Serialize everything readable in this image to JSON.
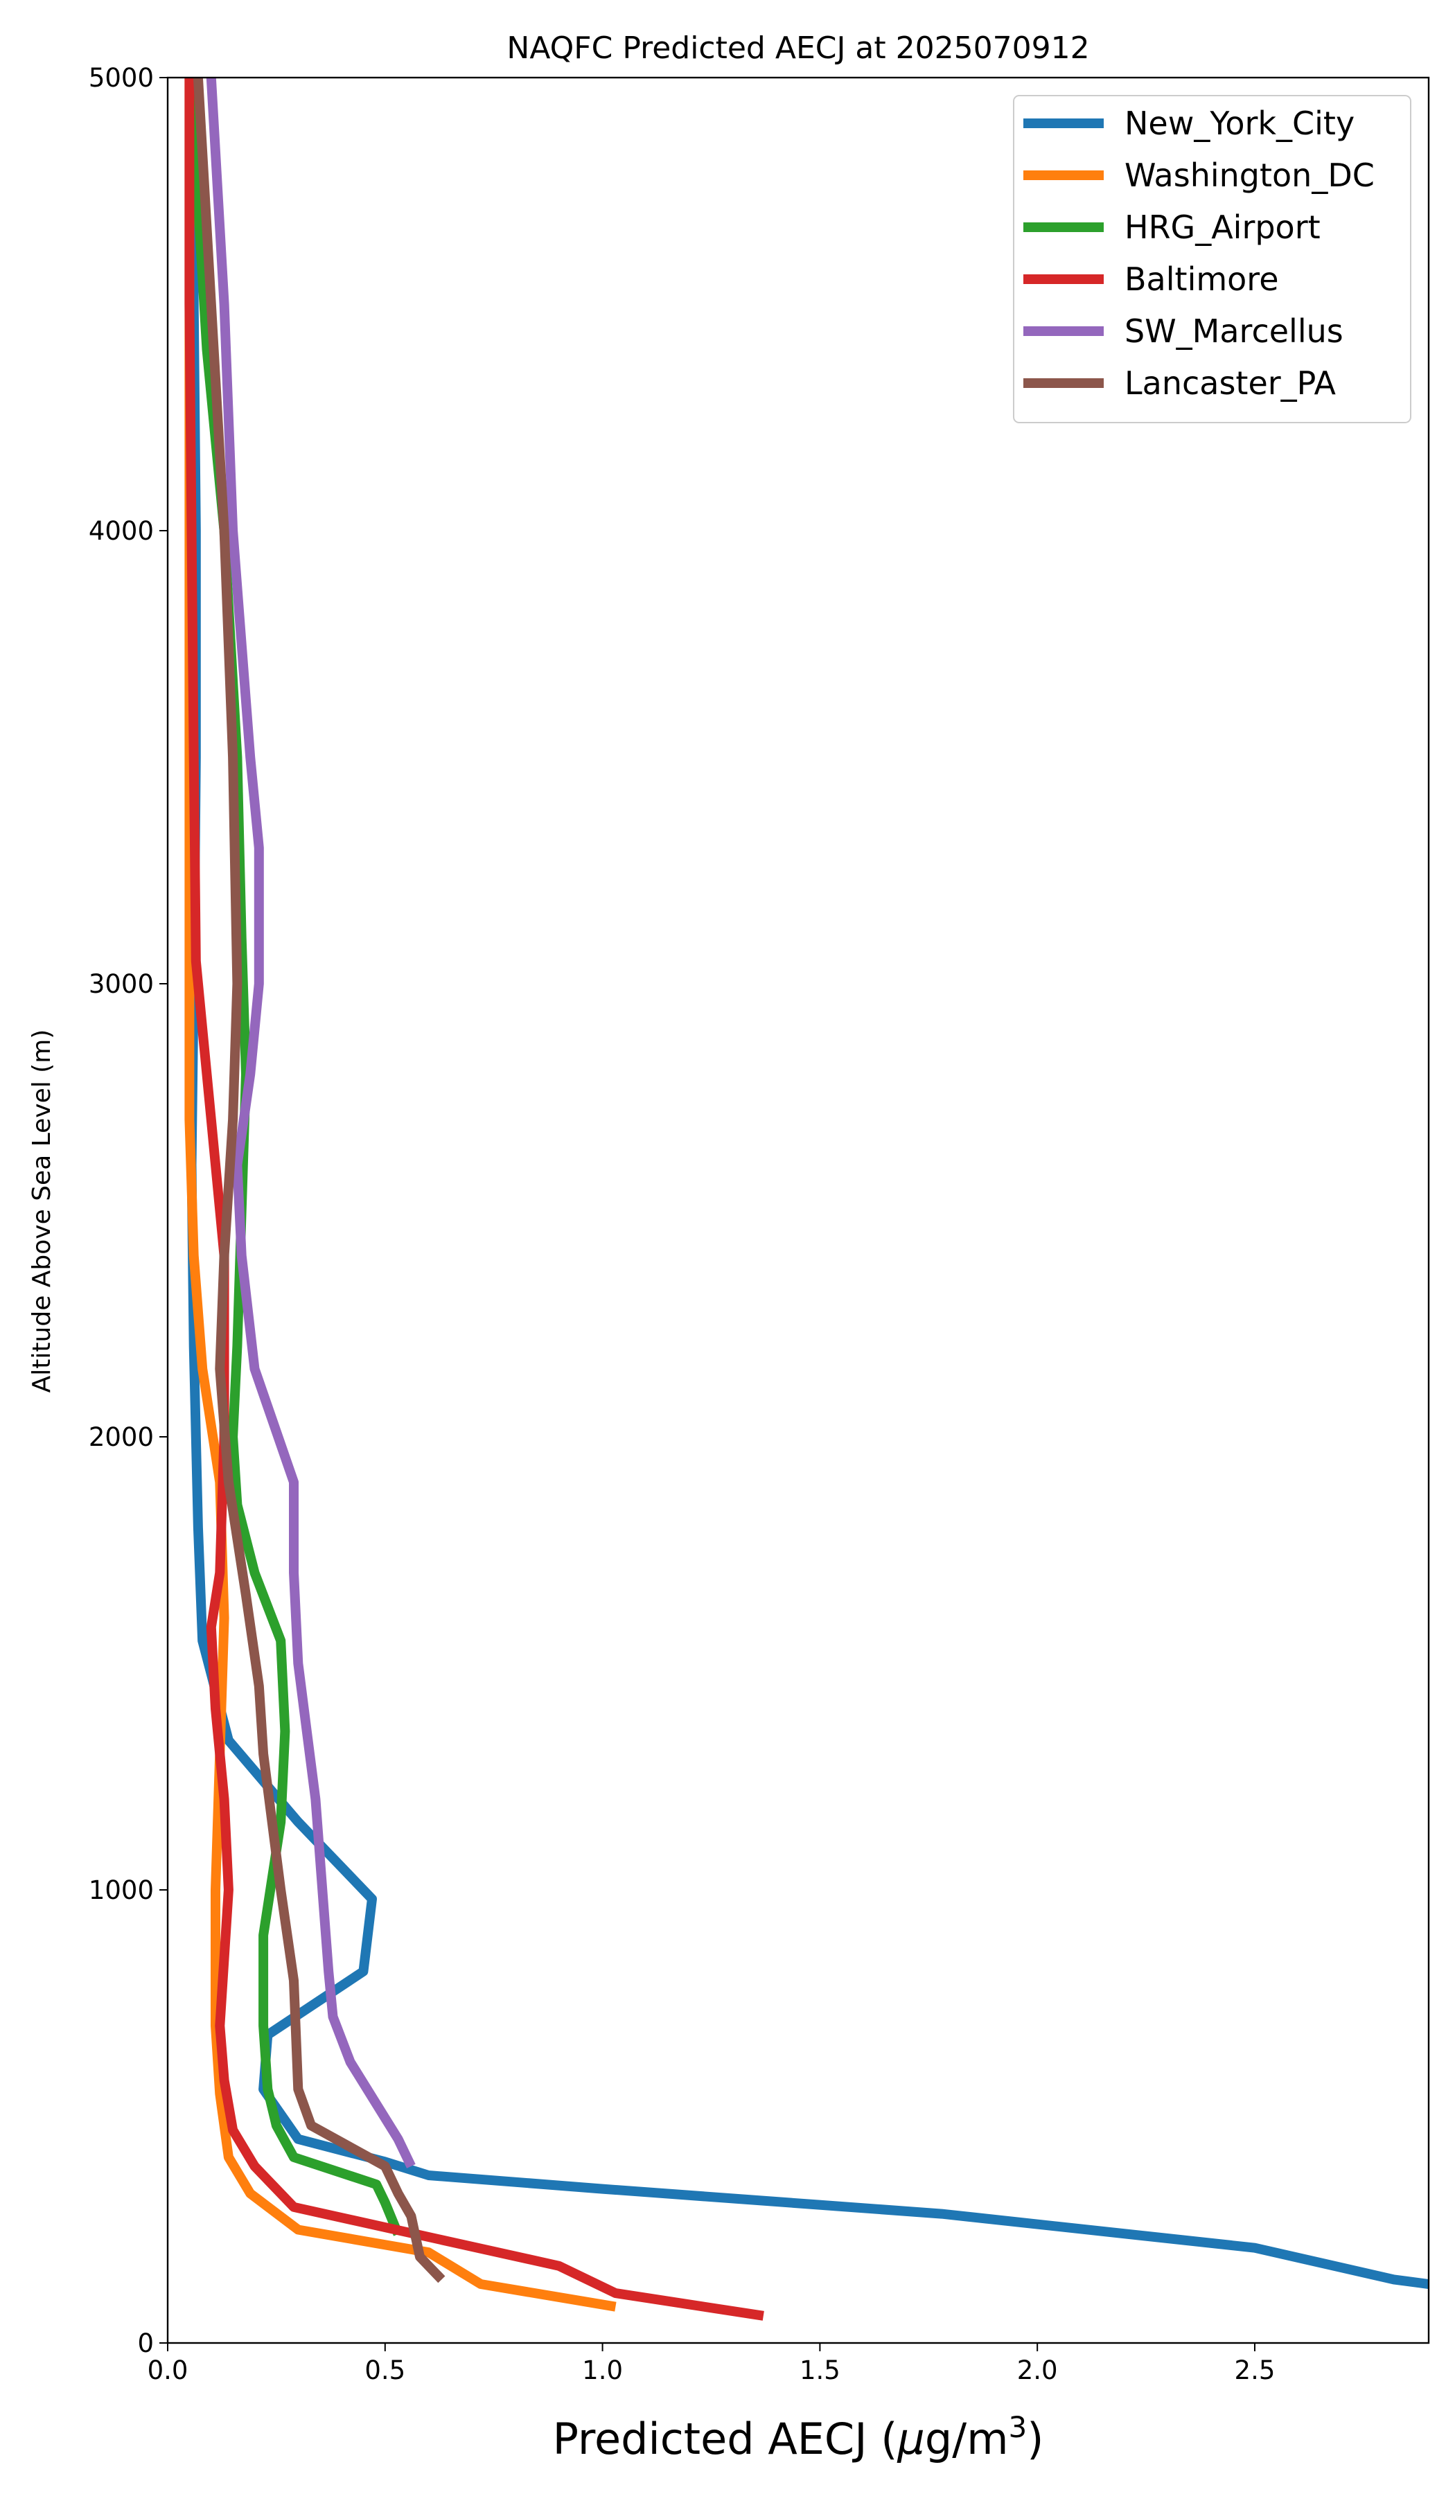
{
  "chart_data": {
    "type": "line",
    "title": "NAQFC Predicted AECJ at 2025070912",
    "xlabel": "Predicted AECJ (μg/m³)",
    "xlabel_parts": {
      "main": "Predicted AECJ (",
      "mu": "μ",
      "unit": "g/m",
      "sup": "3",
      "close": ")"
    },
    "ylabel": "Altitude Above Sea Level (m)",
    "xlim": [
      0,
      2.9
    ],
    "ylim": [
      0,
      5000
    ],
    "xticks": [
      0,
      0.5,
      1,
      1.5,
      2,
      2.5
    ],
    "xtick_labels": [
      "0.0",
      "0.5",
      "1.0",
      "1.5",
      "2.0",
      "2.5"
    ],
    "yticks": [
      0,
      1000,
      2000,
      3000,
      4000,
      5000
    ],
    "ytick_labels": [
      "0",
      "1000",
      "2000",
      "3000",
      "4000",
      "5000"
    ],
    "legend_position": "top-right",
    "grid": false,
    "series": [
      {
        "name": "New_York_City",
        "color": "#1f77b4",
        "points": [
          [
            2.9,
            130
          ],
          [
            2.82,
            140
          ],
          [
            2.5,
            210
          ],
          [
            1.78,
            285
          ],
          [
            1.0,
            340
          ],
          [
            0.6,
            370
          ],
          [
            0.5,
            400
          ],
          [
            0.3,
            450
          ],
          [
            0.22,
            560
          ],
          [
            0.23,
            680
          ],
          [
            0.45,
            820
          ],
          [
            0.47,
            980
          ],
          [
            0.3,
            1150
          ],
          [
            0.14,
            1330
          ],
          [
            0.08,
            1550
          ],
          [
            0.07,
            1800
          ],
          [
            0.06,
            2200
          ],
          [
            0.055,
            2600
          ],
          [
            0.06,
            3000
          ],
          [
            0.065,
            3500
          ],
          [
            0.065,
            4000
          ],
          [
            0.06,
            4500
          ],
          [
            0.055,
            5000
          ]
        ]
      },
      {
        "name": "Washington_DC",
        "color": "#ff7f0e",
        "points": [
          [
            1.03,
            80
          ],
          [
            0.72,
            130
          ],
          [
            0.6,
            200
          ],
          [
            0.3,
            250
          ],
          [
            0.19,
            330
          ],
          [
            0.14,
            410
          ],
          [
            0.12,
            550
          ],
          [
            0.11,
            700
          ],
          [
            0.11,
            1000
          ],
          [
            0.12,
            1300
          ],
          [
            0.13,
            1600
          ],
          [
            0.12,
            1900
          ],
          [
            0.08,
            2150
          ],
          [
            0.06,
            2400
          ],
          [
            0.05,
            2700
          ],
          [
            0.05,
            3000
          ],
          [
            0.05,
            3500
          ],
          [
            0.05,
            4000
          ],
          [
            0.05,
            5000
          ]
        ]
      },
      {
        "name": "HRG_Airport",
        "color": "#2ca02c",
        "points": [
          [
            0.53,
            240
          ],
          [
            0.5,
            310
          ],
          [
            0.48,
            350
          ],
          [
            0.29,
            410
          ],
          [
            0.25,
            480
          ],
          [
            0.23,
            560
          ],
          [
            0.22,
            700
          ],
          [
            0.22,
            900
          ],
          [
            0.26,
            1150
          ],
          [
            0.27,
            1350
          ],
          [
            0.26,
            1550
          ],
          [
            0.2,
            1700
          ],
          [
            0.16,
            1850
          ],
          [
            0.15,
            2000
          ],
          [
            0.16,
            2200
          ],
          [
            0.17,
            2500
          ],
          [
            0.18,
            2800
          ],
          [
            0.17,
            3100
          ],
          [
            0.16,
            3500
          ],
          [
            0.13,
            4000
          ],
          [
            0.09,
            4400
          ],
          [
            0.065,
            4800
          ],
          [
            0.06,
            5000
          ]
        ]
      },
      {
        "name": "Baltimore",
        "color": "#d62728",
        "points": [
          [
            1.37,
            60
          ],
          [
            1.03,
            110
          ],
          [
            0.9,
            170
          ],
          [
            0.29,
            300
          ],
          [
            0.2,
            390
          ],
          [
            0.15,
            470
          ],
          [
            0.13,
            580
          ],
          [
            0.12,
            700
          ],
          [
            0.13,
            850
          ],
          [
            0.14,
            1000
          ],
          [
            0.13,
            1200
          ],
          [
            0.11,
            1400
          ],
          [
            0.1,
            1580
          ],
          [
            0.12,
            1700
          ],
          [
            0.13,
            2000
          ],
          [
            0.13,
            2400
          ],
          [
            0.1,
            2700
          ],
          [
            0.08,
            2900
          ],
          [
            0.065,
            3050
          ],
          [
            0.06,
            3500
          ],
          [
            0.055,
            4000
          ],
          [
            0.05,
            4500
          ],
          [
            0.05,
            5000
          ]
        ]
      },
      {
        "name": "SW_Marcellus",
        "color": "#9467bd",
        "points": [
          [
            0.56,
            390
          ],
          [
            0.53,
            450
          ],
          [
            0.42,
            620
          ],
          [
            0.38,
            720
          ],
          [
            0.37,
            820
          ],
          [
            0.34,
            1200
          ],
          [
            0.32,
            1350
          ],
          [
            0.3,
            1500
          ],
          [
            0.29,
            1700
          ],
          [
            0.29,
            1900
          ],
          [
            0.2,
            2150
          ],
          [
            0.17,
            2400
          ],
          [
            0.16,
            2600
          ],
          [
            0.19,
            2800
          ],
          [
            0.21,
            3000
          ],
          [
            0.21,
            3300
          ],
          [
            0.19,
            3500
          ],
          [
            0.15,
            4000
          ],
          [
            0.13,
            4500
          ],
          [
            0.1,
            5000
          ]
        ]
      },
      {
        "name": "Lancaster_PA",
        "color": "#8c564b",
        "points": [
          [
            0.63,
            140
          ],
          [
            0.58,
            190
          ],
          [
            0.56,
            280
          ],
          [
            0.53,
            330
          ],
          [
            0.5,
            390
          ],
          [
            0.33,
            480
          ],
          [
            0.3,
            560
          ],
          [
            0.29,
            800
          ],
          [
            0.26,
            1000
          ],
          [
            0.22,
            1300
          ],
          [
            0.21,
            1450
          ],
          [
            0.18,
            1650
          ],
          [
            0.14,
            1900
          ],
          [
            0.12,
            2150
          ],
          [
            0.13,
            2400
          ],
          [
            0.15,
            2700
          ],
          [
            0.16,
            3000
          ],
          [
            0.15,
            3500
          ],
          [
            0.13,
            4000
          ],
          [
            0.1,
            4500
          ],
          [
            0.07,
            5000
          ]
        ]
      }
    ]
  }
}
